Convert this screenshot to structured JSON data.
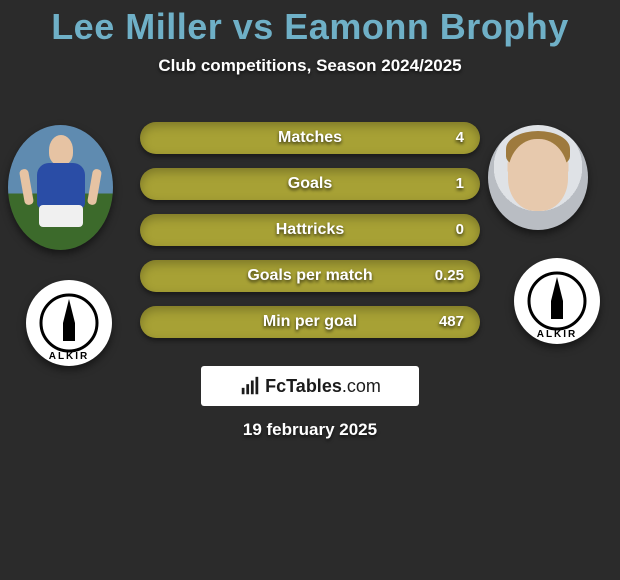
{
  "title": "Lee Miller vs Eamonn Brophy",
  "subtitle": "Club competitions, Season 2024/2025",
  "date": "19 february 2025",
  "brand": {
    "name": "FcTables",
    "suffix": ".com"
  },
  "players": {
    "left": {
      "name": "Lee Miller",
      "club_code": "ALKIR"
    },
    "right": {
      "name": "Eamonn Brophy",
      "club_code": "ALKIR"
    }
  },
  "colors": {
    "title": "#6fb0c7",
    "bar_bg": "#a7a135",
    "bar_left": "#cc4d3f",
    "page_bg": "#2b2b2b"
  },
  "bars": [
    {
      "label": "Matches",
      "left_pct": 0,
      "right_value": "4"
    },
    {
      "label": "Goals",
      "left_pct": 0,
      "right_value": "1"
    },
    {
      "label": "Hattricks",
      "left_pct": 0,
      "right_value": "0"
    },
    {
      "label": "Goals per match",
      "left_pct": 0,
      "right_value": "0.25"
    },
    {
      "label": "Min per goal",
      "left_pct": 0,
      "right_value": "487"
    }
  ]
}
